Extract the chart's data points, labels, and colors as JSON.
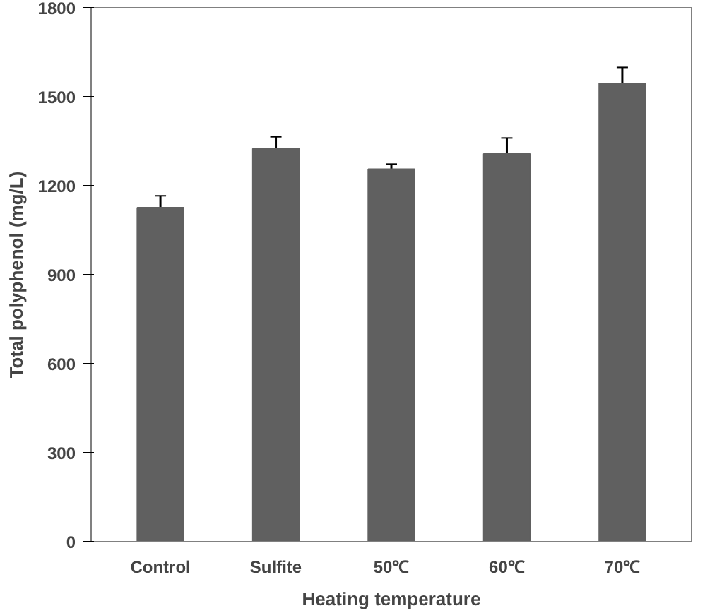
{
  "chart_data": {
    "type": "bar",
    "xlabel": "Heating temperature",
    "ylabel": "Total polyphenol (mg/L)",
    "categories": [
      "Control",
      "Sulfite",
      "50℃",
      "60℃",
      "70℃"
    ],
    "values": [
      1126,
      1325,
      1256,
      1308,
      1545
    ],
    "errors": [
      [
        1126,
        1166
      ],
      [
        1325,
        1365
      ],
      [
        1256,
        1273
      ],
      [
        1308,
        1361
      ],
      [
        1545,
        1599
      ]
    ],
    "color": "#606060",
    "ylim": [
      0,
      1800
    ],
    "yticks": [
      0,
      300,
      600,
      900,
      1200,
      1500,
      1800
    ],
    "grid": false
  }
}
